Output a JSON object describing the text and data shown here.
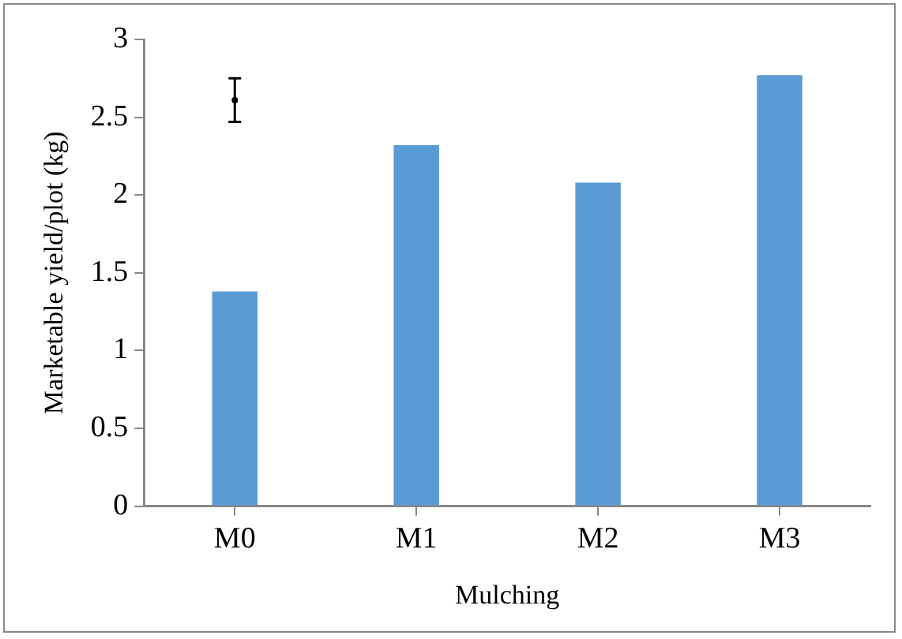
{
  "chart_data": {
    "type": "bar",
    "xlabel": "Mulching",
    "ylabel": "Marketable yield/plot (kg)",
    "categories": [
      "M0",
      "M1",
      "M2",
      "M3"
    ],
    "series": [
      {
        "color": "#5b9bd5",
        "values": [
          1.38,
          2.32,
          2.08,
          2.77
        ]
      },
      {
        "type": "scatter",
        "color": "#000000",
        "x": [
          "M0"
        ],
        "values": [
          2.61
        ],
        "errors": [
          0.14
        ]
      }
    ],
    "ylim": [
      0,
      3
    ],
    "yticks": [
      0,
      0.5,
      1,
      1.5,
      2,
      2.5,
      3
    ],
    "grid": false,
    "legend": false
  }
}
